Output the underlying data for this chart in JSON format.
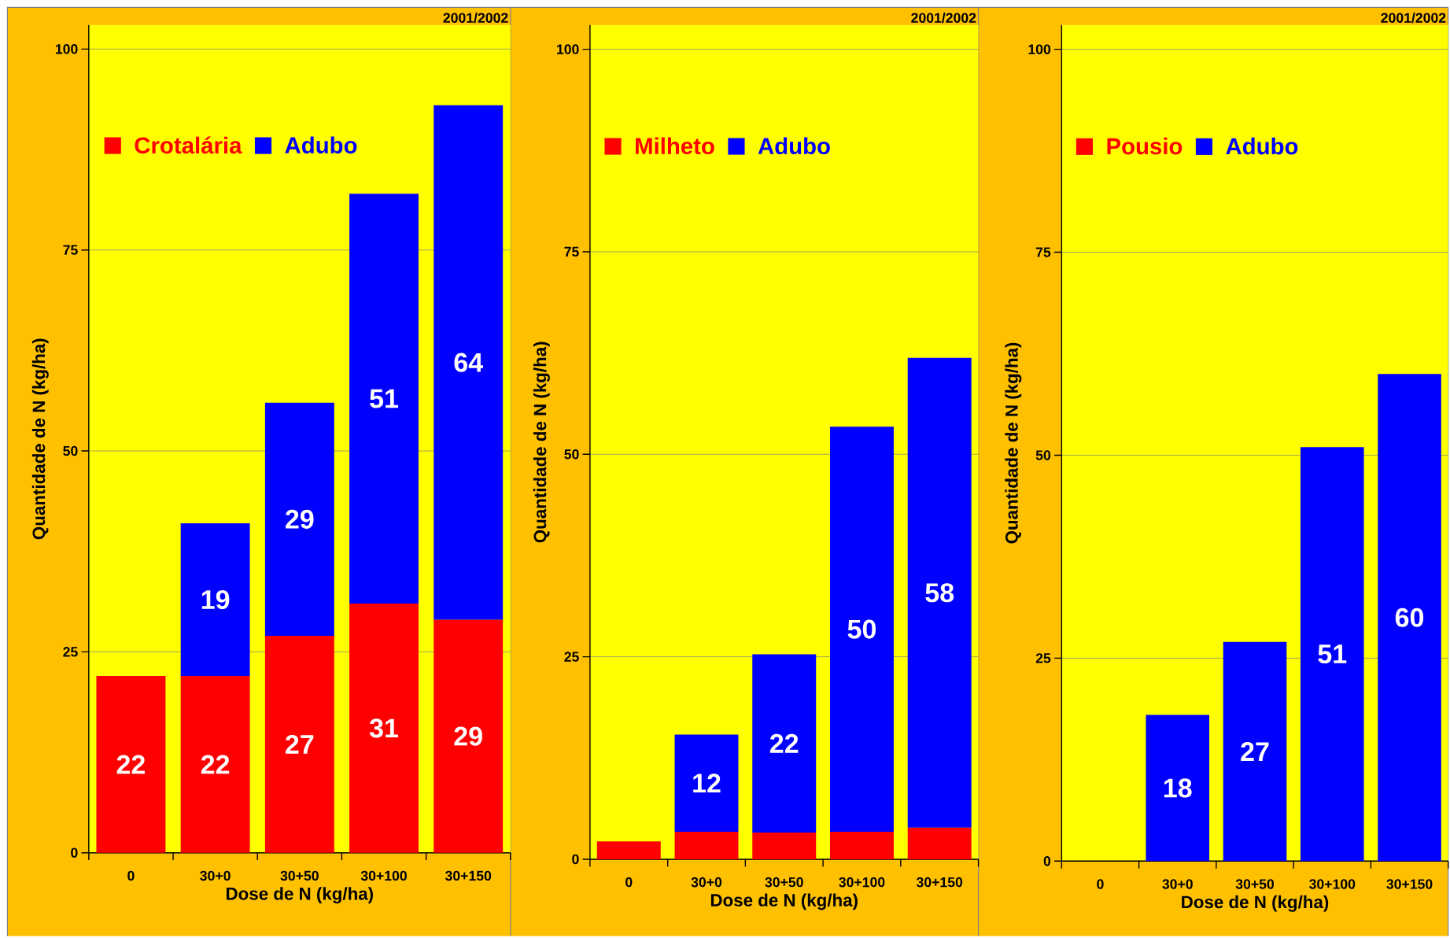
{
  "chart_data": [
    {
      "type": "bar",
      "stacked": true,
      "categories": [
        "0",
        "30+0",
        "30+50",
        "30+100",
        "30+150"
      ],
      "xlabel": "Dose de N (kg/ha)",
      "ylabel": "Quantidade de N (kg/ha)",
      "annotations": [
        "2001/2002"
      ],
      "ylim": [
        0,
        103
      ],
      "yticks": [
        0,
        25,
        50,
        75,
        100
      ],
      "grid": "y",
      "legend": "top left",
      "data_labels": true,
      "series": [
        {
          "name": "Crotalária",
          "color": "#ff0000",
          "values": [
            22,
            22,
            27,
            31,
            29
          ]
        },
        {
          "name": "Adubo",
          "color": "#0000ff",
          "values": [
            null,
            19,
            29,
            51,
            64
          ]
        }
      ]
    },
    {
      "type": "bar",
      "stacked": true,
      "categories": [
        "0",
        "30+0",
        "30+50",
        "30+100",
        "30+150"
      ],
      "xlabel": "Dose de N (kg/ha)",
      "ylabel": "Quantidade de N (kg/ha)",
      "annotations": [
        "2001/2002"
      ],
      "ylim": [
        0,
        103
      ],
      "yticks": [
        0,
        25,
        50,
        75,
        100
      ],
      "grid": "y",
      "legend": "top left",
      "series": [
        {
          "name": "Milheto",
          "color": "#ff0000",
          "values": [
            2.2,
            3.4,
            3.3,
            3.4,
            3.9
          ],
          "value_labels": [
            null,
            null,
            null,
            null,
            null
          ]
        },
        {
          "name": "Adubo",
          "color": "#0000ff",
          "values": [
            null,
            12,
            22,
            50,
            58
          ],
          "value_labels": [
            null,
            "12",
            "22",
            "50",
            "58"
          ]
        }
      ]
    },
    {
      "type": "bar",
      "stacked": true,
      "categories": [
        "0",
        "30+0",
        "30+50",
        "30+100",
        "30+150"
      ],
      "xlabel": "Dose de N (kg/ha)",
      "ylabel": "Quantidade de N (kg/ha)",
      "annotations": [
        "2001/2002"
      ],
      "ylim": [
        0,
        103
      ],
      "yticks": [
        0,
        25,
        50,
        75,
        100
      ],
      "grid": "y",
      "legend": "top left",
      "data_labels": true,
      "series": [
        {
          "name": "Pousio",
          "color": "#ff0000",
          "values": [
            null,
            null,
            null,
            null,
            null
          ]
        },
        {
          "name": "Adubo",
          "color": "#0000ff",
          "values": [
            null,
            18,
            27,
            51,
            60
          ]
        }
      ]
    }
  ]
}
